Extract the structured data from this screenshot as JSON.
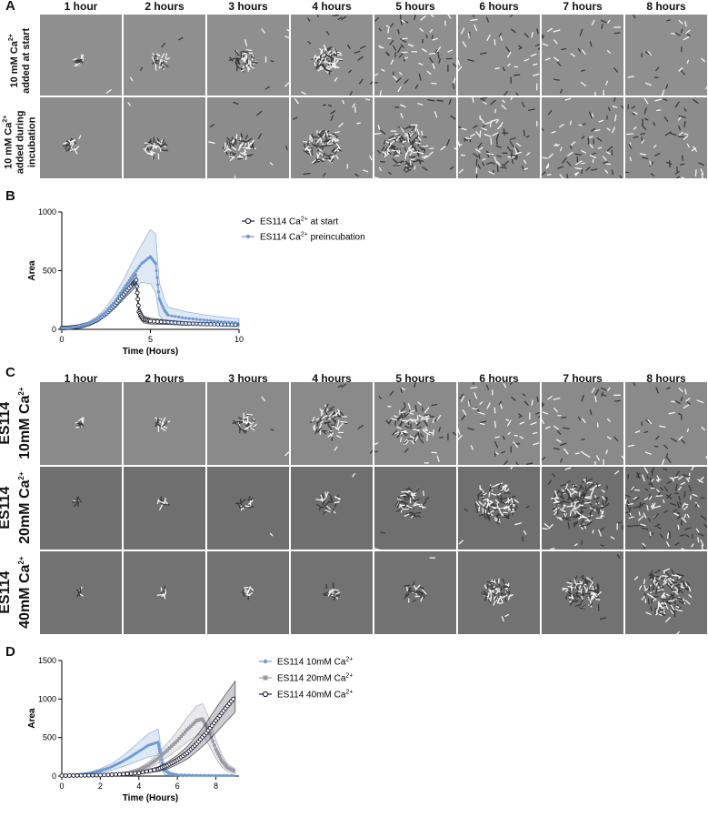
{
  "panel_letters": [
    "A",
    "B",
    "C",
    "D"
  ],
  "panelA": {
    "time_labels": [
      "1 hour",
      "2 hours",
      "3 hours",
      "4 hours",
      "5 hours",
      "6 hours",
      "7 hours",
      "8 hours"
    ],
    "row_labels": [
      {
        "line1": "10 mM Ca",
        "sup": "2+",
        "line2": "added at start"
      },
      {
        "line1": "10 mM Ca",
        "sup": "2+",
        "line2": "added during",
        "line3": "incubation"
      }
    ]
  },
  "panelC": {
    "time_labels": [
      "1 hour",
      "2 hours",
      "3 hours",
      "4 hours",
      "5 hours",
      "6 hours",
      "7 hours",
      "8 hours"
    ],
    "row_labels": [
      {
        "strain": "ES114",
        "conc": "10mM Ca",
        "sup": "2+"
      },
      {
        "strain": "ES114",
        "conc": "20mM Ca",
        "sup": "2+"
      },
      {
        "strain": "ES114",
        "conc": "40mM Ca",
        "sup": "2+"
      }
    ]
  },
  "chart_data": [
    {
      "panel": "B",
      "type": "line",
      "xlabel": "Time (Hours)",
      "ylabel": "Area",
      "xlim": [
        0,
        10
      ],
      "ylim": [
        0,
        1000
      ],
      "xticks": [
        0,
        5,
        10
      ],
      "yticks": [
        0,
        500,
        1000
      ],
      "legend_position": "right",
      "series": [
        {
          "name": "ES114 Ca2+ at start",
          "name_base": "ES114 Ca",
          "name_sup": "2+",
          "name_tail": " at start",
          "color": "#1a1a2e",
          "marker": "open-circle",
          "x": [
            0,
            0.5,
            1,
            1.5,
            2,
            2.5,
            3,
            3.5,
            4,
            4.2,
            4.35,
            4.6,
            5,
            6,
            7,
            8,
            9,
            10
          ],
          "y": [
            10,
            15,
            25,
            45,
            80,
            135,
            210,
            300,
            385,
            420,
            150,
            85,
            70,
            60,
            50,
            45,
            42,
            40
          ],
          "err": [
            2,
            3,
            5,
            8,
            15,
            22,
            30,
            40,
            50,
            55,
            45,
            30,
            25,
            18,
            15,
            12,
            10,
            10
          ]
        },
        {
          "name": "ES114 Ca2+ preincubation",
          "name_base": "ES114 Ca",
          "name_sup": "2+",
          "name_tail": " preincubation",
          "color": "#6f9bd6",
          "marker": "filled-circle",
          "x": [
            0,
            0.5,
            1,
            1.5,
            2,
            2.5,
            3,
            3.5,
            4,
            4.5,
            5,
            5.3,
            5.5,
            5.8,
            6,
            7,
            8,
            9,
            10
          ],
          "y": [
            10,
            15,
            28,
            50,
            90,
            150,
            240,
            350,
            460,
            560,
            620,
            560,
            260,
            160,
            120,
            95,
            80,
            65,
            55
          ],
          "err": [
            3,
            5,
            8,
            12,
            20,
            35,
            55,
            80,
            120,
            160,
            230,
            250,
            140,
            90,
            70,
            55,
            45,
            40,
            35
          ]
        }
      ]
    },
    {
      "panel": "D",
      "type": "line",
      "xlabel": "Time (Hours)",
      "ylabel": "Area",
      "xlim": [
        0,
        9.2
      ],
      "ylim": [
        0,
        1500
      ],
      "xticks": [
        0,
        2,
        4,
        6,
        8
      ],
      "yticks": [
        0,
        500,
        1000,
        1500
      ],
      "legend_position": "right",
      "series": [
        {
          "name": "ES114 10mM Ca2+",
          "name_base": "ES114 10mM Ca",
          "name_sup": "2+",
          "name_tail": "",
          "color": "#6f9bd6",
          "marker": "filled-circle",
          "x": [
            0,
            0.5,
            1,
            1.5,
            2,
            2.5,
            3,
            3.5,
            4,
            4.5,
            5,
            5.1,
            5.3,
            5.6,
            6,
            7,
            8,
            9
          ],
          "y": [
            10,
            14,
            22,
            40,
            70,
            110,
            170,
            240,
            320,
            400,
            440,
            300,
            80,
            30,
            15,
            10,
            8,
            8
          ],
          "err": [
            3,
            5,
            8,
            15,
            25,
            40,
            60,
            90,
            120,
            150,
            170,
            150,
            60,
            25,
            12,
            8,
            6,
            6
          ]
        },
        {
          "name": "ES114 20mM Ca2+",
          "name_base": "ES114 20mM Ca",
          "name_sup": "2+",
          "name_tail": "",
          "color": "#9a9aa6",
          "marker": "filled-square",
          "x": [
            0,
            1,
            2,
            3,
            3.5,
            4,
            4.5,
            5,
            5.5,
            6,
            6.5,
            7,
            7.3,
            7.6,
            8,
            8.3,
            8.6,
            9
          ],
          "y": [
            5,
            8,
            12,
            25,
            45,
            80,
            140,
            230,
            340,
            460,
            600,
            720,
            740,
            600,
            350,
            200,
            110,
            60
          ],
          "err": [
            2,
            3,
            5,
            10,
            15,
            25,
            40,
            60,
            90,
            120,
            160,
            190,
            200,
            180,
            120,
            80,
            50,
            30
          ]
        },
        {
          "name": "ES114 40mM Ca2+",
          "name_base": "ES114 40mM Ca",
          "name_sup": "2+",
          "name_tail": "",
          "color": "#1a1a2e",
          "marker": "open-circle",
          "x": [
            0,
            1,
            2,
            3,
            4,
            5,
            5.5,
            6,
            6.5,
            7,
            7.5,
            8,
            8.5,
            9
          ],
          "y": [
            5,
            8,
            12,
            22,
            40,
            90,
            140,
            210,
            300,
            420,
            560,
            720,
            880,
            1030
          ],
          "err": [
            2,
            3,
            5,
            8,
            14,
            30,
            45,
            60,
            80,
            100,
            130,
            160,
            180,
            200
          ]
        }
      ]
    }
  ]
}
